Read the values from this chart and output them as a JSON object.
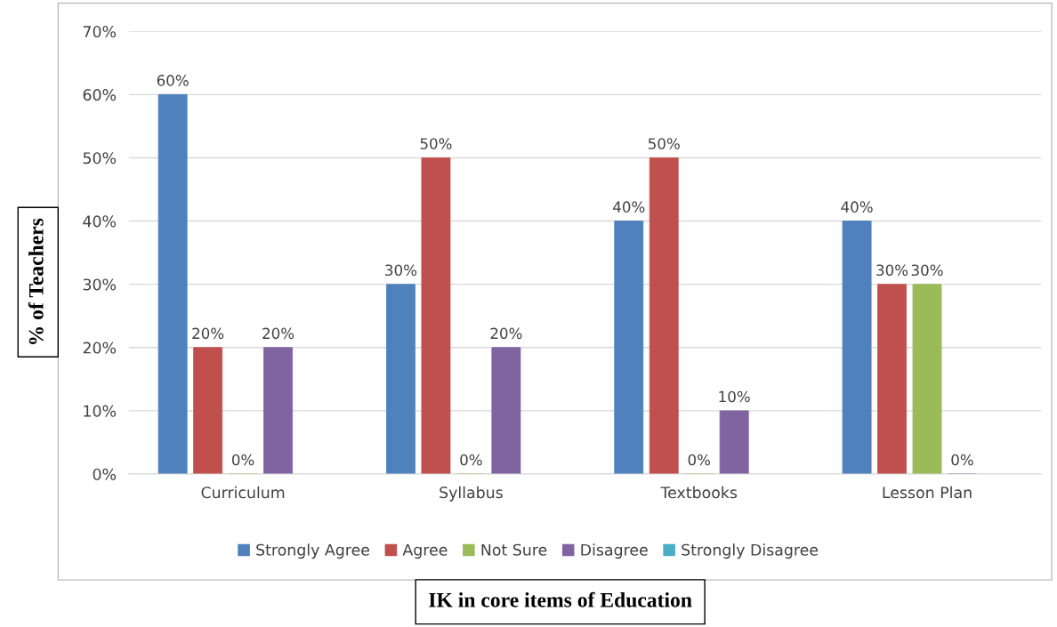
{
  "chart_data": {
    "type": "bar",
    "xlabel": "IK in core items of Education",
    "ylabel": "% of Teachers",
    "categories": [
      "Curriculum",
      "Syllabus",
      "Textbooks",
      "Lesson Plan"
    ],
    "series": [
      {
        "name": "Strongly Agree",
        "color": "#4f81bd",
        "values": [
          60,
          30,
          40,
          40
        ],
        "value_labels": [
          "60%",
          "30%",
          "40%",
          "40%"
        ]
      },
      {
        "name": "Agree",
        "color": "#c0504d",
        "values": [
          20,
          50,
          50,
          30
        ],
        "value_labels": [
          "20%",
          "50%",
          "50%",
          "30%"
        ]
      },
      {
        "name": "Not Sure",
        "color": "#9bbb59",
        "values": [
          0,
          0,
          0,
          30
        ],
        "value_labels": [
          "0%",
          "0%",
          "0%",
          "30%"
        ]
      },
      {
        "name": "Disagree",
        "color": "#8064a2",
        "values": [
          20,
          20,
          10,
          0
        ],
        "value_labels": [
          "20%",
          "20%",
          "10%",
          "0%"
        ]
      },
      {
        "name": "Strongly Disagree",
        "color": "#4bacc6",
        "values": [
          null,
          null,
          null,
          null
        ],
        "value_labels": [
          null,
          null,
          null,
          null
        ]
      }
    ],
    "ylim": [
      0,
      70
    ],
    "yticks": [
      {
        "value": 0,
        "label": "0%"
      },
      {
        "value": 10,
        "label": "10%"
      },
      {
        "value": 20,
        "label": "20%"
      },
      {
        "value": 30,
        "label": "30%"
      },
      {
        "value": 40,
        "label": "40%"
      },
      {
        "value": 50,
        "label": "50%"
      },
      {
        "value": 60,
        "label": "60%"
      },
      {
        "value": 70,
        "label": "70%"
      }
    ],
    "grid": "y",
    "legend": "bottom"
  }
}
